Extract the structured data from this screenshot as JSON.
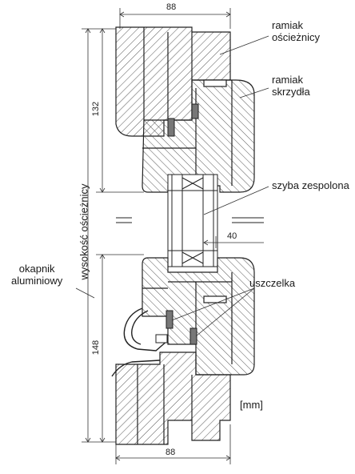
{
  "labels": {
    "ramiak_oscieznicy_1": "ramiak",
    "ramiak_oscieznicy_2": "ościeżnicy",
    "ramiak_skrzydla_1": "ramiak",
    "ramiak_skrzydla_2": "skrzydła",
    "szyba": "szyba zespolona",
    "uszczelka": "uszczelka",
    "okapnik_1": "okapnik",
    "okapnik_2": "aluminiowy",
    "wysokosc": "wysokość ościeżnicy",
    "unit": "[mm]"
  },
  "dimensions": {
    "top_width": "88",
    "bottom_width": "88",
    "upper_height": "132",
    "lower_height": "148",
    "glass_width": "40"
  }
}
